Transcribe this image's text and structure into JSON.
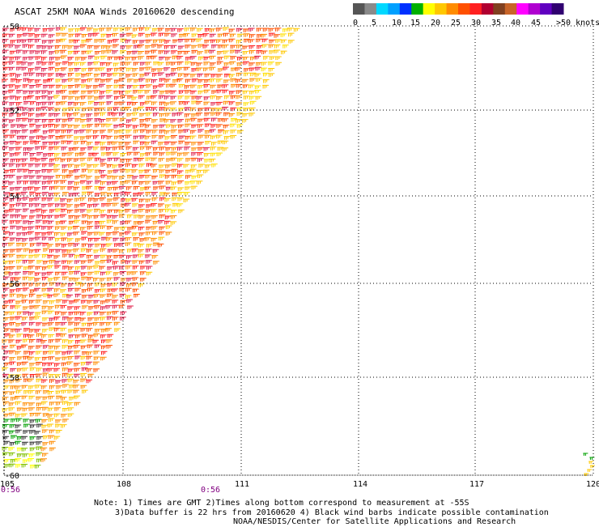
{
  "title": "ASCAT 25KM NOAA Winds 20160620 descending",
  "legend": {
    "colors": [
      "#555555",
      "#8a8a8a",
      "#00d8ff",
      "#00a0ff",
      "#0030ff",
      "#00b000",
      "#ffff00",
      "#ffc800",
      "#ff8c00",
      "#ff5000",
      "#ff2020",
      "#b00030",
      "#804020",
      "#c86428",
      "#ff00ff",
      "#b000d0",
      "#6000c0",
      "#300070"
    ],
    "labels": [
      "0",
      "5",
      "10",
      "15",
      "20",
      "25",
      "30",
      "35",
      "40",
      "45",
      ">50 knots"
    ]
  },
  "map": {
    "lat_labels": [
      "-50",
      "-52",
      "-54",
      "-56",
      "-58",
      "-60"
    ],
    "lon_labels": [
      "105",
      "108",
      "111",
      "114",
      "117",
      "120"
    ],
    "time_labels": [
      "0:56",
      "0:56"
    ]
  },
  "notes": {
    "line1": "Note: 1) Times are GMT 2)Times along bottom correspond to measurement at -55S",
    "line2": "3)Data buffer is 22 hrs from 20160620 4) Black wind barbs indicate possible contamination",
    "line3": "NOAA/NESDIS/Center for Satellite Applications and Research"
  }
}
